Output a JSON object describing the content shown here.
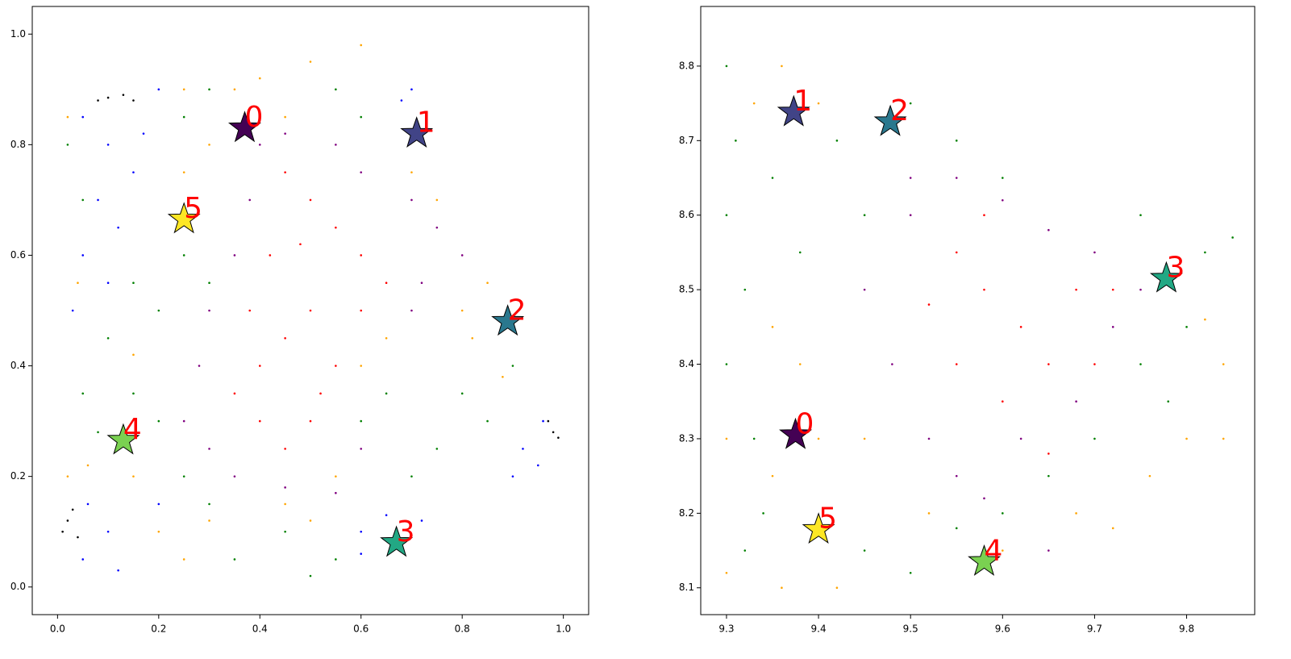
{
  "chart_data": [
    {
      "type": "scatter",
      "xlim": [
        -0.05,
        1.05
      ],
      "ylim": [
        -0.05,
        1.05
      ],
      "xticks": [
        {
          "value": 0,
          "label": "0.0"
        },
        0.2,
        0.4,
        0.6,
        0.8,
        {
          "value": 1,
          "label": "1.0"
        }
      ],
      "yticks": [
        {
          "value": 0,
          "label": "0.0"
        },
        0.2,
        0.4,
        0.6,
        0.8,
        {
          "value": 1,
          "label": "1.0"
        }
      ],
      "series": [
        {
          "color": "black",
          "x": [
            0.08,
            0.1,
            0.13,
            0.15,
            0.01,
            0.02,
            0.03,
            0.04,
            0.97,
            0.98,
            0.99
          ],
          "y": [
            0.88,
            0.885,
            0.89,
            0.88,
            0.1,
            0.12,
            0.14,
            0.09,
            0.3,
            0.28,
            0.27
          ]
        },
        {
          "color": "blue",
          "x": [
            0.05,
            0.1,
            0.15,
            0.08,
            0.12,
            0.05,
            0.1,
            0.03,
            0.17,
            0.2,
            0.06,
            0.1,
            0.05,
            0.12,
            0.2,
            0.6,
            0.65,
            0.72,
            0.6,
            0.92,
            0.96,
            0.95,
            0.9,
            0.68,
            0.7
          ],
          "y": [
            0.85,
            0.8,
            0.75,
            0.7,
            0.65,
            0.6,
            0.55,
            0.5,
            0.82,
            0.9,
            0.15,
            0.1,
            0.05,
            0.03,
            0.15,
            0.1,
            0.13,
            0.12,
            0.06,
            0.25,
            0.3,
            0.22,
            0.2,
            0.88,
            0.9
          ]
        },
        {
          "color": "green",
          "x": [
            0.02,
            0.05,
            0.15,
            0.2,
            0.1,
            0.25,
            0.3,
            0.05,
            0.15,
            0.2,
            0.08,
            0.25,
            0.3,
            0.35,
            0.45,
            0.5,
            0.55,
            0.7,
            0.75,
            0.8,
            0.85,
            0.9,
            0.6,
            0.65,
            0.55,
            0.6,
            0.3,
            0.25
          ],
          "y": [
            0.8,
            0.7,
            0.55,
            0.5,
            0.45,
            0.6,
            0.55,
            0.35,
            0.35,
            0.3,
            0.28,
            0.2,
            0.15,
            0.05,
            0.1,
            0.02,
            0.05,
            0.2,
            0.25,
            0.35,
            0.3,
            0.4,
            0.3,
            0.35,
            0.9,
            0.85,
            0.9,
            0.85
          ]
        },
        {
          "color": "orange",
          "x": [
            0.02,
            0.06,
            0.15,
            0.2,
            0.25,
            0.3,
            0.45,
            0.5,
            0.25,
            0.3,
            0.35,
            0.4,
            0.5,
            0.6,
            0.45,
            0.25,
            0.7,
            0.75,
            0.8,
            0.85,
            0.82,
            0.88,
            0.6,
            0.65,
            0.02,
            0.15,
            0.04,
            0.55
          ],
          "y": [
            0.2,
            0.22,
            0.2,
            0.1,
            0.05,
            0.12,
            0.15,
            0.12,
            0.75,
            0.8,
            0.9,
            0.92,
            0.95,
            0.98,
            0.85,
            0.9,
            0.75,
            0.7,
            0.5,
            0.55,
            0.45,
            0.38,
            0.4,
            0.45,
            0.85,
            0.42,
            0.55,
            0.2
          ]
        },
        {
          "color": "purple",
          "x": [
            0.4,
            0.45,
            0.55,
            0.6,
            0.7,
            0.75,
            0.8,
            0.35,
            0.3,
            0.28,
            0.25,
            0.3,
            0.35,
            0.45,
            0.55,
            0.6,
            0.7,
            0.72,
            0.38
          ],
          "y": [
            0.8,
            0.82,
            0.8,
            0.75,
            0.7,
            0.65,
            0.6,
            0.6,
            0.5,
            0.4,
            0.3,
            0.25,
            0.2,
            0.18,
            0.17,
            0.25,
            0.5,
            0.55,
            0.7
          ]
        },
        {
          "color": "red",
          "x": [
            0.45,
            0.5,
            0.55,
            0.6,
            0.65,
            0.5,
            0.45,
            0.4,
            0.35,
            0.4,
            0.45,
            0.5,
            0.55,
            0.6,
            0.42,
            0.38,
            0.48,
            0.52
          ],
          "y": [
            0.75,
            0.7,
            0.65,
            0.6,
            0.55,
            0.5,
            0.45,
            0.4,
            0.35,
            0.3,
            0.25,
            0.3,
            0.4,
            0.5,
            0.6,
            0.5,
            0.62,
            0.35
          ]
        }
      ],
      "centers": {
        "x": [
          0.37,
          0.71,
          0.89,
          0.67,
          0.13,
          0.25
        ],
        "y": [
          0.83,
          0.82,
          0.48,
          0.08,
          0.265,
          0.665
        ],
        "labels": [
          "0",
          "1",
          "2",
          "3",
          "4",
          "5"
        ],
        "colors": [
          "#440154",
          "#414487",
          "#2a788e",
          "#22a884",
          "#7ad151",
          "#fde725"
        ],
        "label_color": "red"
      }
    },
    {
      "type": "scatter",
      "xlim": [
        9.272,
        9.874
      ],
      "ylim": [
        8.064,
        8.88
      ],
      "xticks": [
        9.3,
        9.4,
        9.5,
        9.6,
        9.7,
        9.8
      ],
      "yticks": [
        8.1,
        8.2,
        8.3,
        8.4,
        8.5,
        8.6,
        8.7,
        8.8
      ],
      "series": [
        {
          "color": "green",
          "x": [
            9.3,
            9.31,
            9.3,
            9.32,
            9.3,
            9.33,
            9.35,
            9.38,
            9.34,
            9.32,
            9.42,
            9.45,
            9.5,
            9.55,
            9.6,
            9.45,
            9.5,
            9.55,
            9.6,
            9.65,
            9.7,
            9.75,
            9.8,
            9.82,
            9.75,
            9.78,
            9.85
          ],
          "y": [
            8.8,
            8.7,
            8.6,
            8.5,
            8.4,
            8.3,
            8.65,
            8.55,
            8.2,
            8.15,
            8.7,
            8.6,
            8.75,
            8.7,
            8.65,
            8.15,
            8.12,
            8.18,
            8.2,
            8.25,
            8.3,
            8.4,
            8.45,
            8.55,
            8.6,
            8.35,
            8.57
          ]
        },
        {
          "color": "orange",
          "x": [
            9.3,
            9.35,
            9.4,
            9.3,
            9.36,
            9.42,
            9.38,
            9.35,
            9.36,
            9.4,
            9.33,
            9.45,
            9.52,
            9.6,
            9.68,
            9.72,
            9.8,
            9.84,
            9.84,
            9.76,
            9.82
          ],
          "y": [
            8.3,
            8.25,
            8.3,
            8.12,
            8.1,
            8.1,
            8.4,
            8.45,
            8.8,
            8.75,
            8.75,
            8.3,
            8.2,
            8.15,
            8.2,
            8.18,
            8.3,
            8.4,
            8.3,
            8.25,
            8.46
          ]
        },
        {
          "color": "purple",
          "x": [
            9.45,
            9.5,
            9.55,
            9.6,
            9.65,
            9.48,
            9.52,
            9.55,
            9.62,
            9.68,
            9.72,
            9.75,
            9.7,
            9.65,
            9.58,
            9.5
          ],
          "y": [
            8.5,
            8.6,
            8.65,
            8.62,
            8.58,
            8.4,
            8.3,
            8.25,
            8.3,
            8.35,
            8.45,
            8.5,
            8.55,
            8.15,
            8.22,
            8.65
          ]
        },
        {
          "color": "red",
          "x": [
            9.55,
            9.58,
            9.62,
            9.65,
            9.68,
            9.72,
            9.55,
            9.6,
            9.52,
            9.58,
            9.65,
            9.7
          ],
          "y": [
            8.55,
            8.5,
            8.45,
            8.4,
            8.5,
            8.5,
            8.4,
            8.35,
            8.48,
            8.6,
            8.28,
            8.4
          ]
        }
      ],
      "centers": {
        "x": [
          9.375,
          9.373,
          9.478,
          9.778,
          9.58,
          9.4
        ],
        "y": [
          8.305,
          8.738,
          8.725,
          8.515,
          8.135,
          8.178
        ],
        "labels": [
          "0",
          "1",
          "2",
          "3",
          "4",
          "5"
        ],
        "colors": [
          "#440154",
          "#414487",
          "#2a788e",
          "#22a884",
          "#7ad151",
          "#fde725"
        ],
        "label_color": "red"
      }
    }
  ]
}
